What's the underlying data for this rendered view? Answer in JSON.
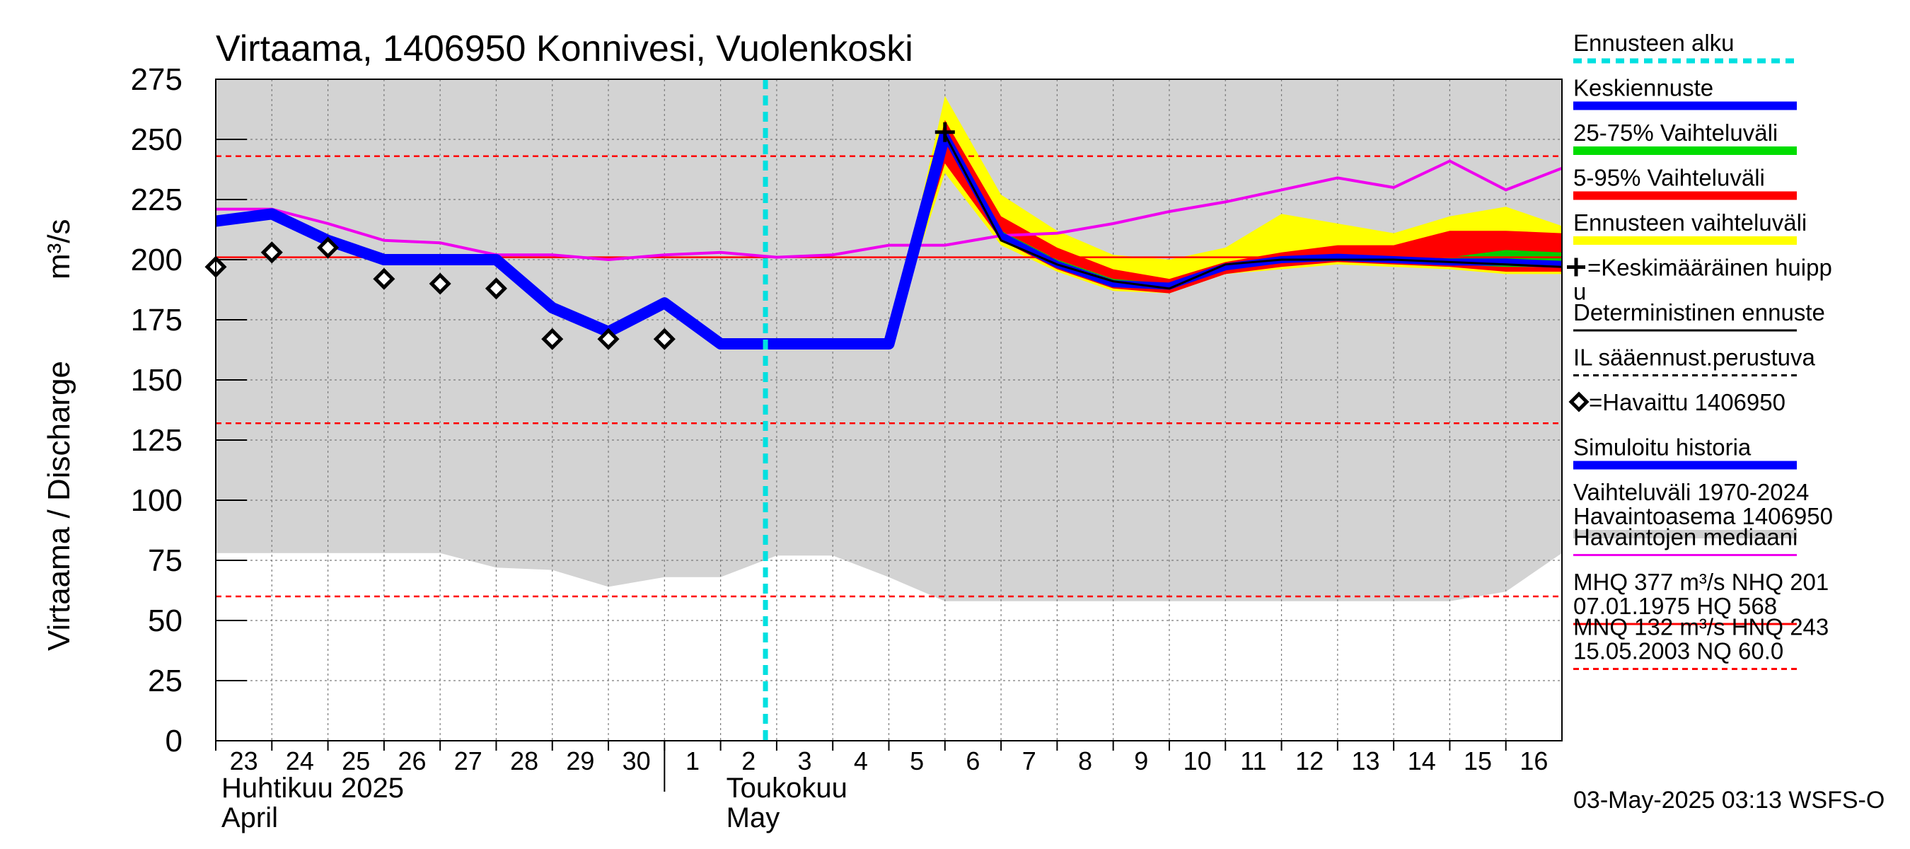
{
  "chart_data": {
    "type": "line",
    "title": "Virtaama, 1406950 Konnivesi, Vuolenkoski",
    "ylabel": "Virtaama / Discharge",
    "yunit": "m³/s",
    "ylim": [
      0,
      275
    ],
    "yticks": [
      0,
      25,
      50,
      75,
      100,
      125,
      150,
      175,
      200,
      225,
      250,
      275
    ],
    "x_days": [
      "23",
      "24",
      "25",
      "26",
      "27",
      "28",
      "29",
      "30",
      "1",
      "2",
      "3",
      "4",
      "5",
      "6",
      "7",
      "8",
      "9",
      "10",
      "11",
      "12",
      "13",
      "14",
      "15",
      "16"
    ],
    "month_labels": [
      {
        "line1": "Huhtikuu  2025",
        "line2": "April",
        "at_day_index": 0
      },
      {
        "line1": "Toukokuu",
        "line2": "May",
        "at_day_index": 9
      }
    ],
    "forecast_start_day_index": 9.8,
    "reference_lines": [
      {
        "name": "HNQ",
        "value": 243,
        "color": "#ff0000",
        "style": "dashed"
      },
      {
        "name": "NHQ",
        "value": 201,
        "color": "#ff0000",
        "style": "solid"
      },
      {
        "name": "MNQ",
        "value": 132,
        "color": "#ff0000",
        "style": "dashed"
      },
      {
        "name": "NQ",
        "value": 60,
        "color": "#ff0000",
        "style": "dashed"
      }
    ],
    "history_range": {
      "x": [
        0,
        1,
        2,
        3,
        4,
        5,
        6,
        7,
        8,
        9,
        10,
        11,
        12,
        13,
        14,
        15,
        16,
        17,
        18,
        19,
        20,
        21,
        22,
        23,
        24
      ],
      "upper": [
        275,
        275,
        275,
        275,
        275,
        275,
        275,
        275,
        275,
        275,
        275,
        275,
        275,
        275,
        275,
        275,
        275,
        275,
        275,
        275,
        275,
        275,
        275,
        275,
        275
      ],
      "lower": [
        78,
        78,
        78,
        78,
        78,
        72,
        71,
        64,
        68,
        68,
        77,
        77,
        68,
        58,
        58,
        58,
        58,
        58,
        58,
        58,
        58,
        58,
        58,
        62,
        78
      ]
    },
    "median": {
      "x": [
        0,
        1,
        2,
        3,
        4,
        5,
        6,
        7,
        8,
        9,
        10,
        11,
        12,
        13,
        14,
        15,
        16,
        17,
        18,
        19,
        20,
        21,
        22,
        23,
        24
      ],
      "values": [
        221,
        221,
        215,
        208,
        207,
        202,
        202,
        200,
        202,
        203,
        201,
        202,
        206,
        206,
        210,
        211,
        215,
        220,
        224,
        229,
        234,
        230,
        241,
        229,
        238
      ]
    },
    "simulated_history": {
      "x": [
        0,
        1,
        2,
        3,
        4,
        5,
        6,
        7,
        8,
        9,
        10,
        11,
        12,
        13
      ],
      "values": [
        216,
        219,
        208,
        200,
        200,
        200,
        180,
        170,
        182,
        165,
        165,
        165,
        165,
        252
      ]
    },
    "observed": {
      "x": [
        0,
        1,
        2,
        3,
        4,
        5,
        6,
        7,
        8
      ],
      "values": [
        197,
        203,
        205,
        192,
        190,
        188,
        167,
        167,
        167
      ]
    },
    "forecast_band_total": {
      "x": [
        12,
        13,
        14,
        15,
        16,
        17,
        18,
        19,
        20,
        21,
        22,
        23,
        24
      ],
      "upper": [
        165,
        268,
        227,
        212,
        202,
        200,
        205,
        219,
        215,
        211,
        218,
        222,
        214
      ],
      "lower": [
        165,
        236,
        206,
        195,
        187,
        186,
        194,
        196,
        198,
        197,
        196,
        194,
        194
      ]
    },
    "forecast_band_5_95": {
      "x": [
        12,
        13,
        14,
        15,
        16,
        17,
        18,
        19,
        20,
        21,
        22,
        23,
        24
      ],
      "upper": [
        165,
        258,
        218,
        205,
        196,
        192,
        199,
        203,
        206,
        206,
        212,
        212,
        211
      ],
      "lower": [
        165,
        240,
        208,
        196,
        188,
        186,
        194,
        197,
        199,
        198,
        197,
        195,
        195
      ]
    },
    "forecast_band_25_75": {
      "x": [
        12,
        13,
        14,
        15,
        16,
        17,
        18,
        19,
        20,
        21,
        22,
        23,
        24
      ],
      "upper": [
        165,
        254,
        212,
        200,
        192,
        190,
        198,
        201,
        202,
        201,
        201,
        204,
        203
      ],
      "lower": [
        165,
        250,
        209,
        197,
        189,
        188,
        196,
        199,
        200,
        199,
        198,
        197,
        197
      ]
    },
    "mean_forecast": {
      "x": [
        12,
        13,
        14,
        15,
        16,
        17,
        18,
        19,
        20,
        21,
        22,
        23,
        24
      ],
      "values": [
        165,
        252,
        210,
        198,
        190,
        189,
        197,
        200,
        201,
        200,
        199,
        199,
        198
      ]
    },
    "deterministic_forecast": {
      "x": [
        13,
        14,
        15,
        16,
        17,
        18,
        19,
        20,
        21,
        22,
        23,
        24
      ],
      "values": [
        252,
        208,
        198,
        191,
        188,
        198,
        200,
        200,
        200,
        199,
        198,
        197
      ]
    },
    "mean_peak": {
      "x": 13,
      "value": 253
    },
    "legend": [
      {
        "label": "Ennusteen alku",
        "color": "#00e0e0",
        "style": "dashed"
      },
      {
        "label": "Keskiennuste",
        "color": "#0000ff",
        "style": "thick"
      },
      {
        "label": "25-75% Vaihteluväli",
        "color": "#00dd00",
        "style": "thick"
      },
      {
        "label": "5-95% Vaihteluväli",
        "color": "#ff0000",
        "style": "thick"
      },
      {
        "label": "Ennusteen vaihteluväli",
        "color": "#ffff00",
        "style": "thick"
      },
      {
        "label": "=Keskimääräinen huipp",
        "label2": "u",
        "color": "#000000",
        "style": "plus"
      },
      {
        "label": "Deterministinen ennuste",
        "color": "#000000",
        "style": "solid"
      },
      {
        "label": "IL sääennust.perustuva",
        "color": "#000000",
        "style": "dashed"
      },
      {
        "label": "=Havaittu 1406950",
        "color": "#000000",
        "style": "diamond"
      },
      {
        "label": "Simuloitu historia",
        "color": "#0000ff",
        "style": "thick"
      },
      {
        "label": "Vaihteluväli 1970-2024",
        "label2": " Havaintoasema 1406950",
        "color": "#d0d0d0",
        "style": "thick"
      },
      {
        "label": "Havaintojen mediaani",
        "color": "#ee00ee",
        "style": "solid"
      },
      {
        "label": "MHQ  377 m³/s NHQ  201",
        "label2": "07.01.1975 HQ  568",
        "color": "#ff0000",
        "style": "solid"
      },
      {
        "label": "MNQ  132 m³/s HNQ  243",
        "label2": "15.05.2003 NQ 60.0",
        "color": "#ff0000",
        "style": "dashed"
      }
    ],
    "footer": "03-May-2025 03:13 WSFS-O",
    "colors": {
      "background_band": "#d3d3d3",
      "forecast_total": "#ffff00",
      "forecast_5_95": "#ff0000",
      "forecast_25_75": "#00cc00",
      "mean_forecast": "#0000ff",
      "simulated": "#0000ff",
      "median": "#ee00ee",
      "reference": "#ff0000",
      "forecast_start": "#00e0e0"
    }
  }
}
